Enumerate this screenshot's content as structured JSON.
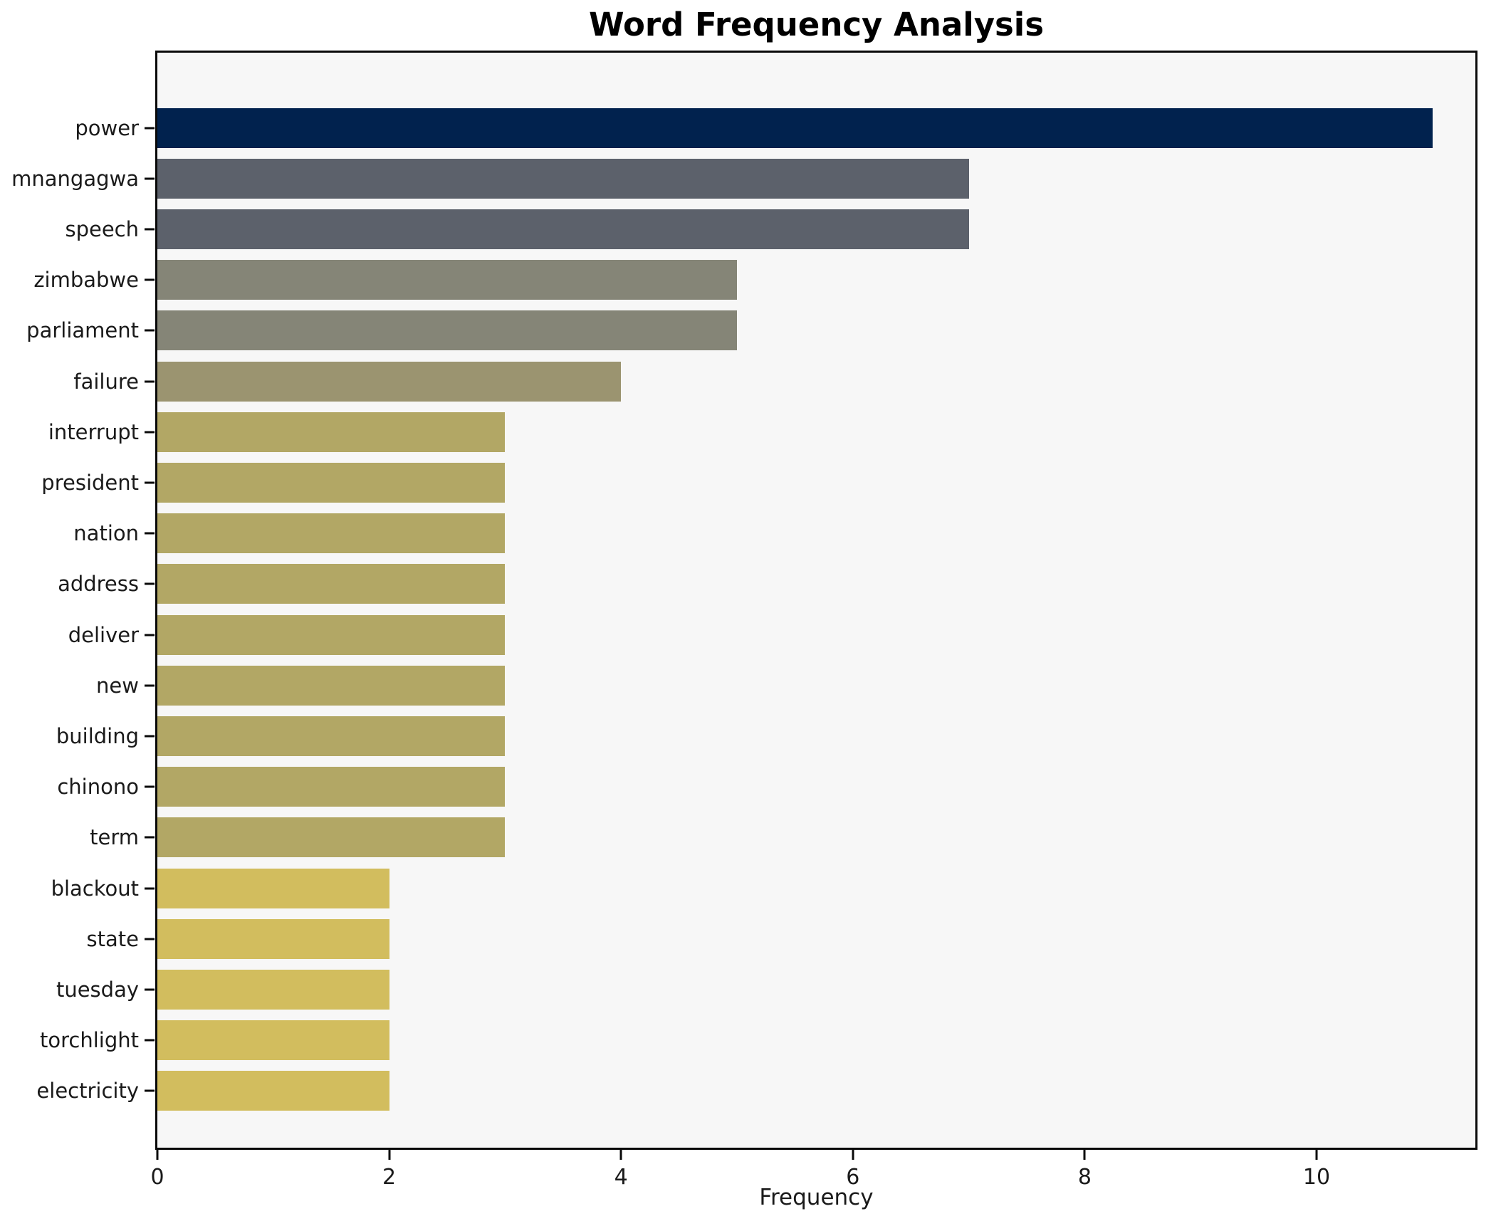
{
  "chart_data": {
    "type": "bar",
    "orientation": "horizontal",
    "title": "Word Frequency Analysis",
    "xlabel": "Frequency",
    "ylabel": "",
    "categories": [
      "power",
      "mnangagwa",
      "speech",
      "zimbabwe",
      "parliament",
      "failure",
      "interrupt",
      "president",
      "nation",
      "address",
      "deliver",
      "new",
      "building",
      "chinono",
      "term",
      "blackout",
      "state",
      "tuesday",
      "torchlight",
      "electricity"
    ],
    "values": [
      11,
      7,
      7,
      5,
      5,
      4,
      3,
      3,
      3,
      3,
      3,
      3,
      3,
      3,
      3,
      2,
      2,
      2,
      2,
      2
    ],
    "bar_colors": [
      "#01224e",
      "#5c616b",
      "#5c616b",
      "#858577",
      "#858577",
      "#9b9470",
      "#b2a765",
      "#b2a765",
      "#b2a765",
      "#b2a765",
      "#b2a765",
      "#b2a765",
      "#b2a765",
      "#b2a765",
      "#b2a765",
      "#d2bd5e",
      "#d2bd5e",
      "#d2bd5e",
      "#d2bd5e",
      "#d2bd5e"
    ],
    "xlim": [
      0,
      11.37
    ],
    "xticks": [
      0,
      2,
      4,
      6,
      8,
      10
    ],
    "grid": false,
    "legend": "none",
    "plot_background": "#f7f7f7",
    "figure_background": "#ffffff",
    "spine_color": "#0a0a0a"
  }
}
